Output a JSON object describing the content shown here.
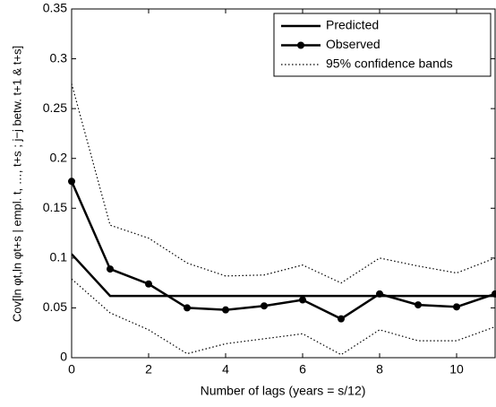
{
  "chart_data": {
    "type": "line",
    "xlabel": "Number of lags (years = s/12)",
    "ylabel": "Cov[ln φt,ln φt+s | empl. t, …, t+s ; j−j betw. t+1 & t+s]",
    "x": [
      0,
      1,
      2,
      3,
      4,
      5,
      6,
      7,
      8,
      9,
      10,
      11
    ],
    "xlim": [
      0,
      11
    ],
    "xticks": [
      0,
      2,
      4,
      6,
      8,
      10
    ],
    "ylim": [
      0,
      0.35
    ],
    "yticks": [
      0,
      0.05,
      0.1,
      0.15,
      0.2,
      0.25,
      0.3,
      0.35
    ],
    "legend": "top-right",
    "series": [
      {
        "name": "Predicted",
        "color": "#000000",
        "style": "solid",
        "values": [
          0.104,
          0.062,
          0.062,
          0.062,
          0.062,
          0.062,
          0.062,
          0.062,
          0.062,
          0.062,
          0.062,
          0.062
        ]
      },
      {
        "name": "Observed",
        "color": "#000000",
        "style": "solid-marker",
        "values": [
          0.177,
          0.089,
          0.074,
          0.05,
          0.048,
          0.052,
          0.058,
          0.039,
          0.064,
          0.053,
          0.051,
          0.064
        ]
      },
      {
        "name": "95% confidence bands",
        "color": "#000000",
        "style": "dotted",
        "upper": [
          0.275,
          0.133,
          0.12,
          0.095,
          0.082,
          0.083,
          0.093,
          0.075,
          0.1,
          0.092,
          0.085,
          0.1
        ],
        "lower": [
          0.079,
          0.045,
          0.028,
          0.004,
          0.014,
          0.019,
          0.024,
          0.003,
          0.028,
          0.017,
          0.017,
          0.031
        ]
      }
    ]
  }
}
